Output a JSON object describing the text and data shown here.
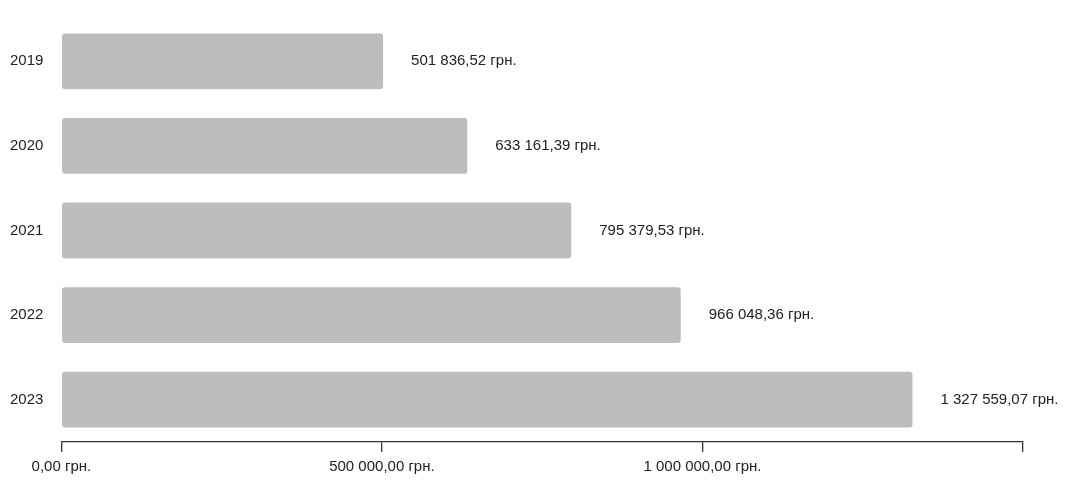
{
  "chart_data": {
    "type": "bar",
    "orientation": "horizontal",
    "categories": [
      "2019",
      "2020",
      "2021",
      "2022",
      "2023"
    ],
    "values": [
      501836.52,
      633161.39,
      795379.53,
      966048.36,
      1327559.07
    ],
    "value_labels": [
      "501 836,52 грн.",
      "633 161,39 грн.",
      "795 379,53 грн.",
      "966 048,36 грн.",
      "1 327 559,07 грн."
    ],
    "color": "#bdbdbd",
    "xlim": [
      0,
      1500000
    ],
    "xticks": [
      {
        "value": 0,
        "label": "0,00 грн."
      },
      {
        "value": 500000,
        "label": "500 000,00 грн."
      },
      {
        "value": 1000000,
        "label": "1 000 000,00 грн."
      },
      {
        "value": 1500000,
        "label": null
      }
    ],
    "grid": false,
    "legend": false
  }
}
